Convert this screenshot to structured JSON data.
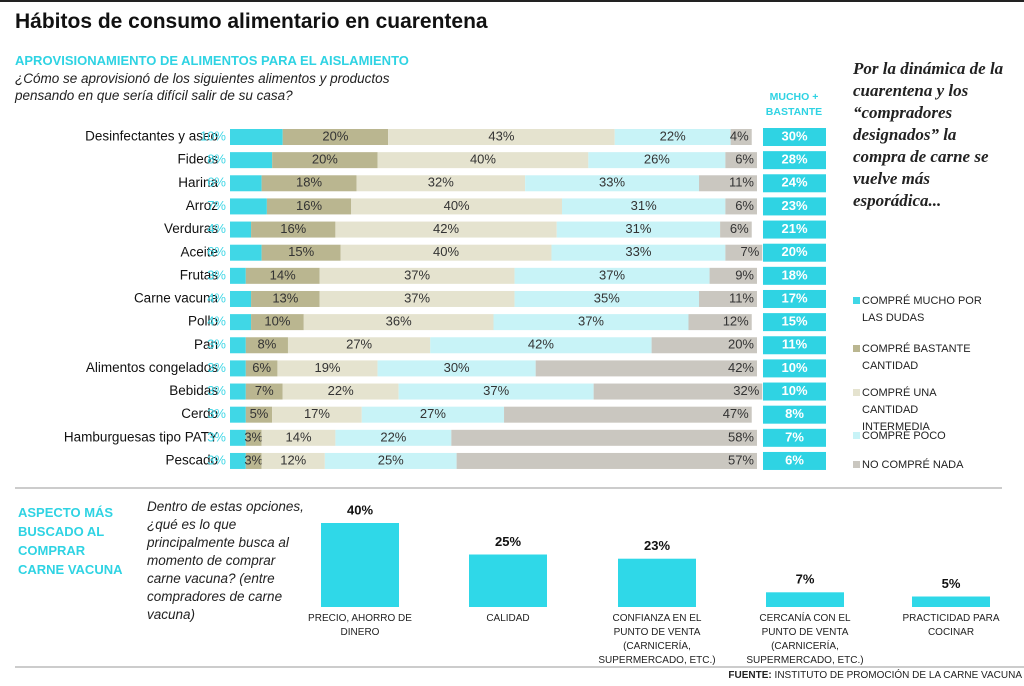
{
  "title": "Hábitos de consumo alimentario en cuarentena",
  "source_label": "FUENTE:",
  "source": "INSTITUTO DE PROMOCIÓN DE LA CARNE VACUNA",
  "chart_data": [
    {
      "type": "bar",
      "orientation": "horizontal",
      "stacked": true,
      "subtitle": "APROVISIONAMIENTO DE ALIMENTOS PARA EL AISLAMIENTO",
      "question": "¿Cómo se aprovisionó de los siguientes alimentos y productos pensando en que sería difícil salir de su casa?",
      "note": "Por la dinámica de la cuarentena y los “compradores designados” la compra de carne se vuelve más esporádica...",
      "categories": [
        "Desinfectantes y aseo",
        "Fideos",
        "Harina",
        "Arroz",
        "Verduras",
        "Aceite",
        "Frutas",
        "Carne vacuna",
        "Pollo",
        "Pan",
        "Alimentos congelados",
        "Bebidas",
        "Cerdo",
        "Hamburguesas tipo PATY",
        "Pescado"
      ],
      "series": [
        {
          "name": "COMPRÉ MUCHO POR LAS DUDAS",
          "color": "#40d7e6",
          "values": [
            10,
            8,
            6,
            7,
            4,
            6,
            3,
            4,
            4,
            3,
            3,
            3,
            3,
            3,
            3
          ],
          "value_labels": [
            "10%",
            "8%",
            "6%",
            "7%",
            "4%",
            "6%",
            "3%",
            "4%",
            "4%",
            "3%",
            "3%",
            "3%",
            "3%",
            "3%",
            "3%"
          ]
        },
        {
          "name": "COMPRÉ BASTANTE CANTIDAD",
          "color": "#bab690",
          "values": [
            20,
            20,
            18,
            16,
            16,
            15,
            14,
            13,
            10,
            8,
            6,
            7,
            5,
            3,
            3
          ],
          "value_labels": [
            "20%",
            "20%",
            "18%",
            "16%",
            "16%",
            "15%",
            "14%",
            "13%",
            "10%",
            "8%",
            "6%",
            "7%",
            "5%",
            "3%",
            "3%"
          ]
        },
        {
          "name": "COMPRÉ UNA CANTIDAD INTERMEDIA",
          "color": "#e5e3cf",
          "values": [
            43,
            40,
            32,
            40,
            42,
            40,
            37,
            37,
            36,
            27,
            19,
            22,
            17,
            14,
            12
          ],
          "value_labels": [
            "43%",
            "40%",
            "32%",
            "40%",
            "42%",
            "40%",
            "37%",
            "37%",
            "36%",
            "27%",
            "19%",
            "22%",
            "17%",
            "14%",
            "12%"
          ]
        },
        {
          "name": "COMPRÉ POCO",
          "color": "#c8f3f7",
          "values": [
            22,
            26,
            33,
            31,
            31,
            33,
            37,
            35,
            37,
            42,
            30,
            37,
            27,
            22,
            25
          ],
          "value_labels": [
            "22%",
            "26%",
            "33%",
            "31%",
            "31%",
            "33%",
            "37%",
            "35%",
            "37%",
            "42%",
            "30%",
            "37%",
            "27%",
            "22%",
            "25%"
          ]
        },
        {
          "name": "NO COMPRÉ NADA",
          "color": "#cac7c0",
          "values": [
            4,
            6,
            11,
            6,
            6,
            7,
            9,
            11,
            12,
            20,
            42,
            32,
            47,
            58,
            57
          ],
          "value_labels": [
            "4%",
            "6%",
            "11%",
            "6%",
            "6%",
            "7%",
            "9%",
            "11%",
            "12%",
            "20%",
            "42%",
            "32%",
            "47%",
            "58%",
            "57%"
          ]
        }
      ],
      "totals": {
        "name": "MUCHO + BASTANTE",
        "color": "#2fd3e3",
        "values": [
          30,
          28,
          24,
          23,
          21,
          20,
          18,
          17,
          15,
          11,
          10,
          10,
          8,
          7,
          6
        ],
        "value_labels": [
          "30%",
          "28%",
          "24%",
          "23%",
          "21%",
          "20%",
          "18%",
          "17%",
          "15%",
          "11%",
          "10%",
          "10%",
          "8%",
          "7%",
          "6%"
        ]
      }
    },
    {
      "type": "bar",
      "title": "ASPECTO MÁS BUSCADO AL COMPRAR CARNE VACUNA",
      "question": "Dentro de estas opciones, ¿qué es lo que principalmente busca al momento de comprar carne vacuna? (entre compradores de carne vacuna)",
      "categories": [
        "PRECIO, AHORRO DE DINERO",
        "CALIDAD",
        "CONFIANZA EN EL PUNTO DE VENTA (CARNICERÍA, SUPERMERCADO, ETC.)",
        "CERCANÍA CON EL PUNTO DE VENTA (CARNICERÍA, SUPERMERCADO, ETC.)",
        "PRACTICIDAD PARA COCINAR"
      ],
      "values": [
        40,
        25,
        23,
        7,
        5
      ],
      "value_labels": [
        "40%",
        "25%",
        "23%",
        "7%",
        "5%"
      ],
      "color": "#2fd8e8"
    }
  ]
}
